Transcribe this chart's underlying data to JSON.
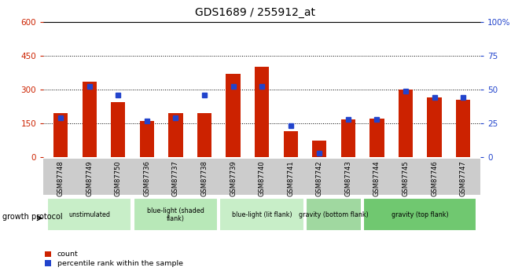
{
  "title": "GDS1689 / 255912_at",
  "samples": [
    "GSM87748",
    "GSM87749",
    "GSM87750",
    "GSM87736",
    "GSM87737",
    "GSM87738",
    "GSM87739",
    "GSM87740",
    "GSM87741",
    "GSM87742",
    "GSM87743",
    "GSM87744",
    "GSM87745",
    "GSM87746",
    "GSM87747"
  ],
  "counts": [
    195,
    335,
    245,
    160,
    195,
    195,
    370,
    400,
    115,
    75,
    168,
    170,
    300,
    265,
    255
  ],
  "percentiles": [
    29,
    52,
    46,
    27,
    29,
    46,
    52,
    52,
    23,
    3,
    28,
    28,
    49,
    44,
    44
  ],
  "ylim_left": [
    0,
    600
  ],
  "ylim_right": [
    0,
    100
  ],
  "yticks_left": [
    0,
    150,
    300,
    450,
    600
  ],
  "yticks_right": [
    0,
    25,
    50,
    75,
    100
  ],
  "groups": [
    {
      "label": "unstimulated",
      "start": 0,
      "end": 3,
      "color": "#c8eec8"
    },
    {
      "label": "blue-light (shaded\nflank)",
      "start": 3,
      "end": 6,
      "color": "#b8e8b8"
    },
    {
      "label": "blue-light (lit flank)",
      "start": 6,
      "end": 9,
      "color": "#c8eec8"
    },
    {
      "label": "gravity (bottom flank)",
      "start": 9,
      "end": 11,
      "color": "#a0d8a0"
    },
    {
      "label": "gravity (top flank)",
      "start": 11,
      "end": 15,
      "color": "#70c870"
    }
  ],
  "bar_color_red": "#cc2200",
  "bar_color_blue": "#2244cc",
  "bg_color_sample": "#cccccc",
  "growth_protocol_label": "growth protocol",
  "legend_count": "count",
  "legend_percentile": "percentile rank within the sample",
  "bar_width": 0.5,
  "left_tick_color": "#cc2200",
  "right_tick_color": "#2244cc"
}
